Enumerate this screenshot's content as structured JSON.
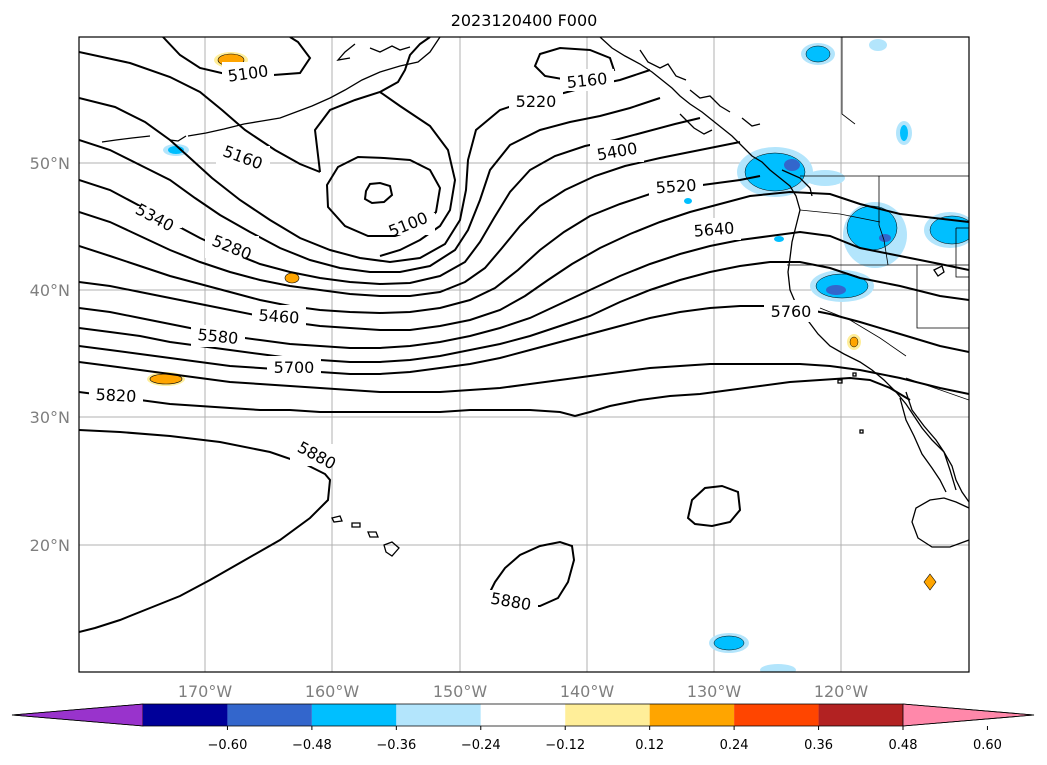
{
  "title": "2023120400 F000",
  "map": {
    "lat_labels": [
      "50°N",
      "40°N",
      "30°N",
      "20°N"
    ],
    "lon_labels": [
      "170°W",
      "160°W",
      "150°W",
      "140°W",
      "130°W",
      "120°W"
    ],
    "contour_labels": [
      "5100",
      "5160",
      "5340",
      "5280",
      "5100",
      "5220",
      "5160",
      "5400",
      "5520",
      "5640",
      "5460",
      "5580",
      "5700",
      "5820",
      "5760",
      "5880",
      "5880"
    ],
    "contour_color": "#000000",
    "gridlines": true
  },
  "colorbar": {
    "ticks": [
      "−0.60",
      "−0.48",
      "−0.36",
      "−0.24",
      "−0.12",
      "0.12",
      "0.24",
      "0.36",
      "0.48",
      "0.60"
    ],
    "colors": [
      "#9933cc",
      "#000099",
      "#3366cc",
      "#00bfff",
      "#b3e5fc",
      "#ffffff",
      "#ffee99",
      "#ffa500",
      "#ff4500",
      "#b22222",
      "#ff88aa"
    ]
  }
}
